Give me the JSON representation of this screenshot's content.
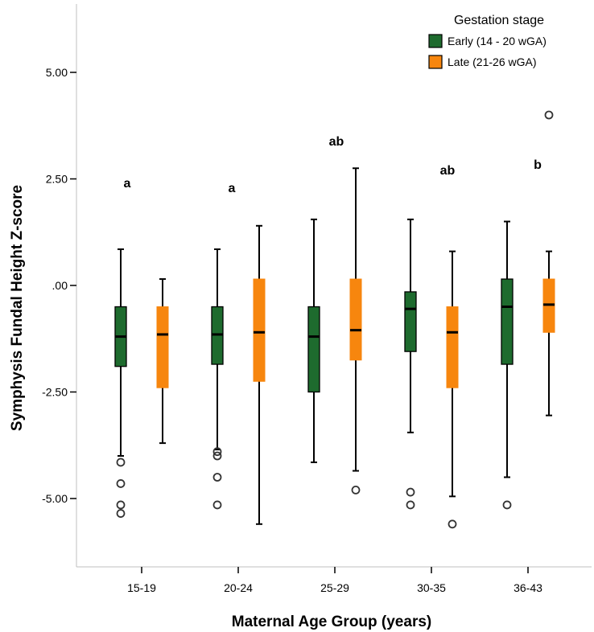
{
  "chart_data": {
    "type": "boxplot",
    "xlabel": "Maternal Age Group (years)",
    "ylabel": "Symphysis Fundal Height Z-score",
    "ylim": [
      -6.2,
      6.5
    ],
    "y_ticks": [
      5.0,
      2.5,
      0.0,
      -2.5,
      -5.0
    ],
    "y_tick_labels": [
      "5.00",
      "2.50",
      ".00",
      "-2.50",
      "-5.00"
    ],
    "categories": [
      "15-19",
      "20-24",
      "25-29",
      "30-35",
      "36-43"
    ],
    "legend": {
      "title": "Gestation stage",
      "position": "top-right"
    },
    "series": [
      {
        "name": "Early (14 - 20 wGA)",
        "color": "#1e6b2e",
        "boxes": [
          {
            "whisker_low": -4.0,
            "q1": -1.9,
            "median": -1.2,
            "q3": -0.5,
            "whisker_high": 0.85,
            "outliers": [
              -4.15,
              -4.65,
              -5.15,
              -5.35
            ]
          },
          {
            "whisker_low": -3.85,
            "q1": -1.85,
            "median": -1.15,
            "q3": -0.5,
            "whisker_high": 0.85,
            "outliers": [
              -3.9,
              -4.0,
              -4.5,
              -5.15
            ]
          },
          {
            "whisker_low": -4.15,
            "q1": -2.5,
            "median": -1.2,
            "q3": -0.5,
            "whisker_high": 1.55,
            "outliers": []
          },
          {
            "whisker_low": -3.45,
            "q1": -1.55,
            "median": -0.55,
            "q3": -0.15,
            "whisker_high": 1.55,
            "outliers": [
              -4.85,
              -5.15
            ]
          },
          {
            "whisker_low": -4.5,
            "q1": -1.85,
            "median": -0.5,
            "q3": 0.15,
            "whisker_high": 1.5,
            "outliers": [
              -5.15
            ]
          }
        ]
      },
      {
        "name": "Late (21-26 wGA)",
        "color": "#f7860e",
        "boxes": [
          {
            "whisker_low": -3.7,
            "q1": -2.4,
            "median": -1.15,
            "q3": -0.5,
            "whisker_high": 0.15,
            "outliers": []
          },
          {
            "whisker_low": -5.6,
            "q1": -2.25,
            "median": -1.1,
            "q3": 0.15,
            "whisker_high": 1.4,
            "outliers": []
          },
          {
            "whisker_low": -4.35,
            "q1": -1.75,
            "median": -1.05,
            "q3": 0.15,
            "whisker_high": 2.75,
            "outliers": [
              -4.8
            ]
          },
          {
            "whisker_low": -4.95,
            "q1": -2.4,
            "median": -1.1,
            "q3": -0.5,
            "whisker_high": 0.8,
            "outliers": [
              -5.6
            ]
          },
          {
            "whisker_low": -3.05,
            "q1": -1.1,
            "median": -0.45,
            "q3": 0.15,
            "whisker_high": 0.8,
            "outliers": [
              4.0
            ]
          }
        ]
      }
    ],
    "annotations": [
      "a",
      "a",
      "ab",
      "ab",
      "b"
    ]
  }
}
